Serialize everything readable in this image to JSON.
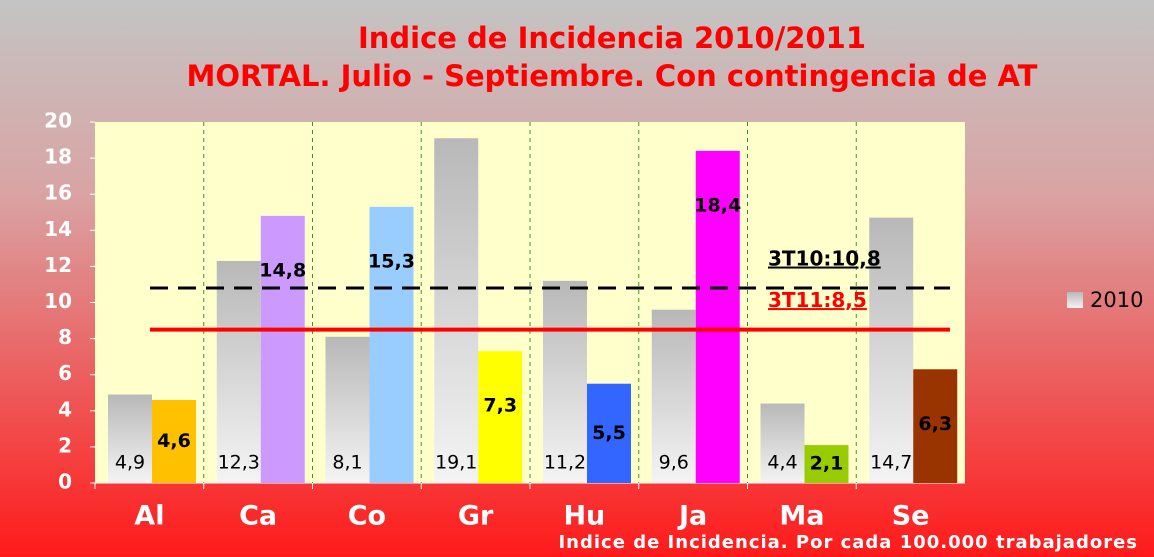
{
  "chart_data": {
    "type": "bar",
    "title": "Indice de Incidencia 2010/2011",
    "subtitle": "MORTAL. Julio - Septiembre. Con contingencia de AT",
    "x_label": "Indice de Incidencia. Por cada 100.000 trabajadores",
    "categories": [
      "Al",
      "Ca",
      "Co",
      "Gr",
      "Hu",
      "Ja",
      "Ma",
      "Se"
    ],
    "series": [
      {
        "name": "2010",
        "color": "#c0c0c0",
        "values": [
          4.9,
          12.3,
          8.1,
          19.1,
          11.2,
          9.6,
          4.4,
          14.7
        ],
        "value_labels": [
          "4,9",
          "12,3",
          "8,1",
          "19,1",
          "11,2",
          "9,6",
          "4,4",
          "14,7"
        ]
      },
      {
        "colors": [
          "#ffc000",
          "#cc99ff",
          "#99ccff",
          "#ffff00",
          "#3366ff",
          "#ff00ff",
          "#99cc00",
          "#993300"
        ],
        "values": [
          4.6,
          14.8,
          15.3,
          7.3,
          5.5,
          18.4,
          2.1,
          6.3
        ],
        "value_labels": [
          "4,6",
          "14,8",
          "15,3",
          "7,3",
          "5,5",
          "18,4",
          "2,1",
          "6,3"
        ]
      }
    ],
    "reference_lines": [
      {
        "value": 10.8,
        "label": "3T10:10,8",
        "color": "#000000",
        "style": "dashed"
      },
      {
        "value": 8.5,
        "label": "3T11:8,5",
        "color": "#ff0000",
        "style": "solid"
      }
    ],
    "ylim": [
      0,
      20
    ],
    "yticks": [
      0,
      2,
      4,
      6,
      8,
      10,
      12,
      14,
      16,
      18,
      20
    ],
    "legend": "right"
  }
}
